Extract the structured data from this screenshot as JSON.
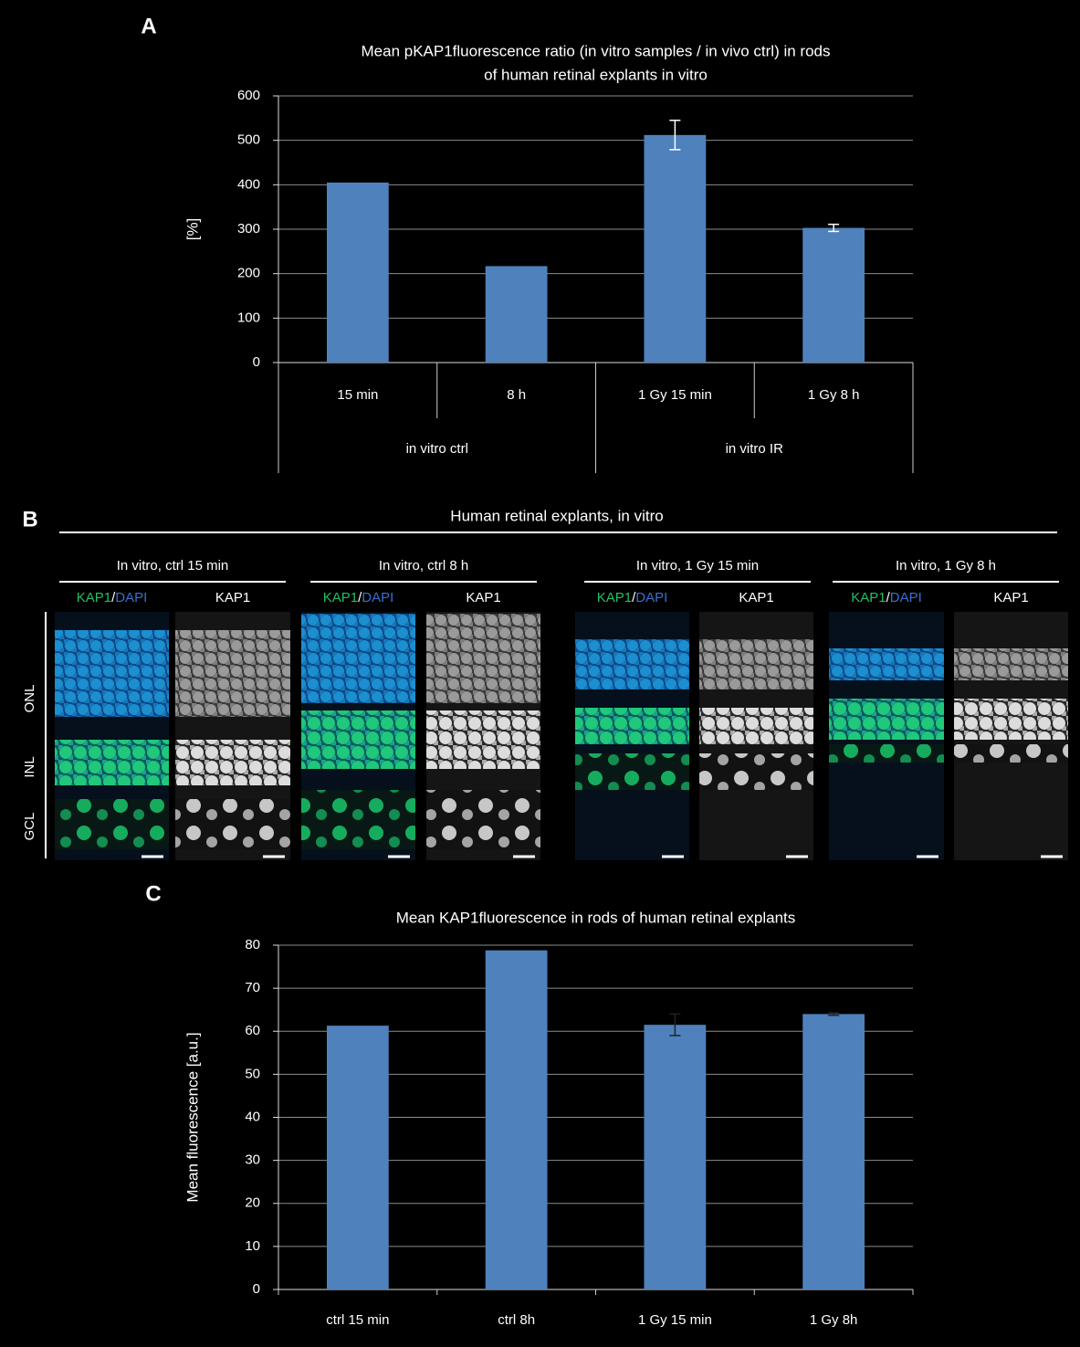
{
  "panel_labels": [
    "A",
    "B",
    "C"
  ],
  "chart_data": [
    {
      "type": "bar",
      "title": [
        "Mean pKAP1fluorescence ratio (in vitro samples / in vivo ctrl) in rods",
        "of human retinal  explants in vitro"
      ],
      "y_label": "[%]",
      "categories": [
        "15 min",
        "8 h",
        "1 Gy 15 min",
        "1 Gy 8 h"
      ],
      "groups": [
        "in vitro ctrl",
        "in vitro IR"
      ],
      "values": [
        405,
        217,
        512,
        303
      ],
      "errors": [
        null,
        null,
        33,
        8
      ],
      "color": "#4f81bd",
      "error_color": "#ffffff",
      "ylim": [
        0,
        600
      ],
      "yticks": [
        0,
        100,
        200,
        300,
        400,
        500,
        600
      ],
      "grid": true
    },
    {
      "type": "bar",
      "title": [
        "Mean KAP1fluorescence in rods of human retinal  explants"
      ],
      "y_label": "Mean fluorescence [a.u.]",
      "categories": [
        "ctrl 15 min",
        "ctrl 8h",
        "1 Gy 15 min",
        "1 Gy 8h"
      ],
      "values": [
        61.3,
        78.8,
        61.5,
        64
      ],
      "errors": [
        null,
        null,
        2.5,
        0.3
      ],
      "color": "#4f81bd",
      "error_color": "#222222",
      "ylim": [
        0,
        80
      ],
      "yticks": [
        0,
        10,
        20,
        30,
        40,
        50,
        60,
        70,
        80
      ],
      "grid": true
    }
  ],
  "images": {
    "title": "Human retinal  explants, in vitro",
    "conditions": [
      "In vitro, ctrl 15 min",
      "In vitro, ctrl 8 h",
      "In vitro, 1 Gy  15 min",
      "In vitro, 1 Gy  8 h"
    ],
    "merge_label": [
      "KAP1",
      "/",
      "DAPI"
    ],
    "single_label": "KAP1",
    "layers": [
      "ONL",
      "INL",
      "GCL"
    ]
  }
}
